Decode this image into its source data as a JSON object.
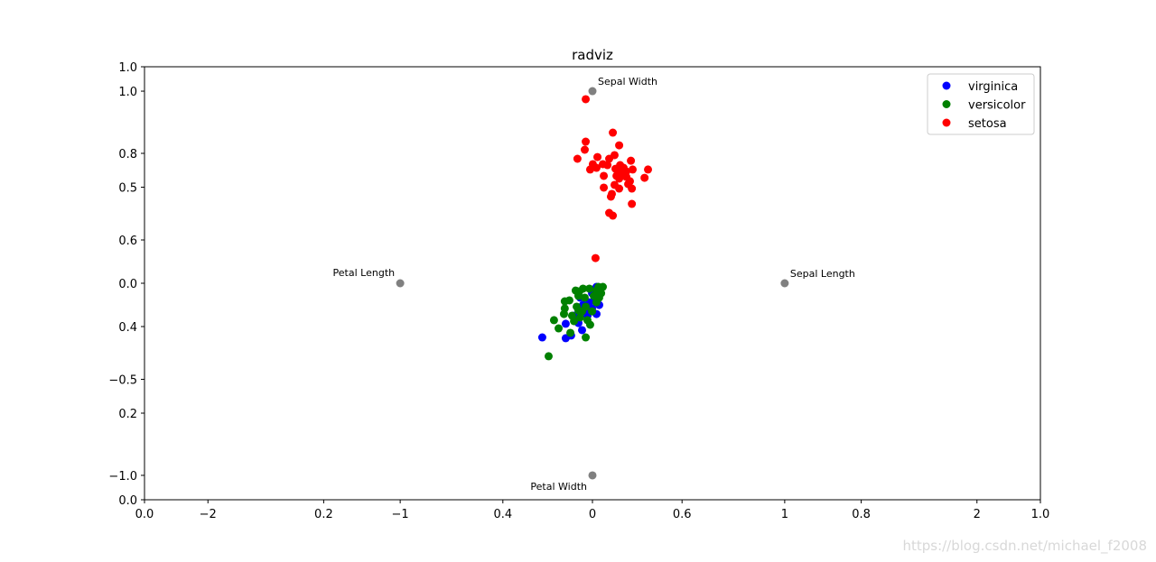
{
  "chart_data": {
    "type": "scatter",
    "title": "radviz",
    "xlim": [
      -2.33,
      2.33
    ],
    "ylim": [
      -1.127,
      1.127
    ],
    "xticks": [
      {
        "value": -2,
        "label": "−2"
      },
      {
        "value": -1,
        "label": "−1"
      },
      0,
      1,
      2
    ],
    "yticks": [
      {
        "value": -1,
        "label": "−1.0"
      },
      {
        "value": -0.5,
        "label": "−0.5"
      },
      {
        "value": 0,
        "label": "0.0"
      },
      0.5,
      {
        "value": 1,
        "label": "1.0"
      }
    ],
    "x2lim": [
      0,
      1
    ],
    "y2lim": [
      0,
      1
    ],
    "x2ticks": [
      {
        "value": 0,
        "label": "0.0"
      },
      0.2,
      0.4,
      0.6,
      0.8,
      {
        "value": 1,
        "label": "1.0"
      }
    ],
    "y2ticks": [
      {
        "value": 0,
        "label": "0.0"
      },
      0.2,
      0.4,
      0.6,
      0.8,
      {
        "value": 1,
        "label": "1.0"
      }
    ],
    "legend": "upper right",
    "anchors": {
      "color": "gray",
      "names": [
        "Sepal Length",
        "Sepal Width",
        "Petal Length",
        "Petal Width"
      ],
      "x": [
        1,
        0,
        -1,
        0
      ],
      "y": [
        0,
        1,
        0,
        -1
      ]
    },
    "series": [
      {
        "name": "virginica",
        "color": "blue",
        "x": [
          -0.261,
          -0.139,
          -0.111,
          -0.139,
          -0.054,
          -0.073,
          -0.026,
          0.021,
          -0.002,
          -0.035,
          0.035,
          0.012,
          0.021,
          -0.016,
          -0.049,
          -0.096,
          -0.064,
          -0.002
        ],
        "y": [
          -0.282,
          -0.286,
          -0.272,
          -0.211,
          -0.244,
          -0.207,
          -0.169,
          -0.16,
          -0.131,
          -0.146,
          -0.113,
          -0.075,
          -0.019,
          -0.099,
          -0.113,
          -0.169,
          -0.075,
          -0.052
        ]
      },
      {
        "name": "versicolor",
        "color": "green",
        "x": [
          -0.228,
          -0.035,
          -0.2,
          -0.176,
          -0.115,
          -0.148,
          -0.144,
          -0.144,
          -0.106,
          -0.073,
          -0.087,
          -0.049,
          -0.016,
          0.021,
          0.054,
          0.045,
          0.021,
          -0.002,
          -0.026,
          -0.012,
          -0.064,
          -0.082,
          -0.12,
          -0.04,
          0.007,
          0.035,
          -0.073,
          -0.035,
          -0.068,
          0.031,
          -0.096,
          -0.054
        ],
        "y": [
          -0.38,
          -0.282,
          -0.192,
          -0.235,
          -0.258,
          -0.16,
          -0.131,
          -0.094,
          -0.169,
          -0.141,
          -0.038,
          -0.028,
          -0.028,
          -0.038,
          -0.019,
          -0.052,
          -0.099,
          -0.146,
          -0.192,
          -0.216,
          -0.178,
          -0.122,
          -0.089,
          -0.075,
          -0.066,
          -0.075,
          -0.066,
          -0.122,
          -0.042,
          -0.019,
          -0.197,
          -0.146
        ]
      },
      {
        "name": "setosa",
        "color": "red",
        "x": [
          -0.035,
          0.106,
          -0.035,
          0.139,
          -0.04,
          -0.078,
          0.087,
          0.115,
          0.026,
          0.2,
          0.002,
          0.054,
          0.144,
          0.162,
          0.289,
          0.209,
          -0.012,
          0.12,
          0.021,
          0.176,
          0.162,
          0.059,
          0.139,
          0.176,
          0.271,
          0.195,
          0.115,
          0.205,
          0.139,
          0.059,
          0.101,
          0.096,
          0.205,
          0.087,
          0.106,
          0.016,
          0.148,
          0.125,
          0.186,
          0.078
        ],
        "y": [
          0.958,
          0.784,
          0.737,
          0.718,
          0.695,
          0.648,
          0.648,
          0.667,
          0.657,
          0.638,
          0.62,
          0.62,
          0.615,
          0.601,
          0.592,
          0.592,
          0.592,
          0.596,
          0.601,
          0.582,
          0.568,
          0.559,
          0.545,
          0.554,
          0.549,
          0.531,
          0.512,
          0.493,
          0.493,
          0.498,
          0.465,
          0.451,
          0.413,
          0.366,
          0.352,
          0.131,
          0.582,
          0.559,
          0.516,
          0.615
        ]
      }
    ]
  },
  "watermark": "https://blog.csdn.net/michael_f2008"
}
